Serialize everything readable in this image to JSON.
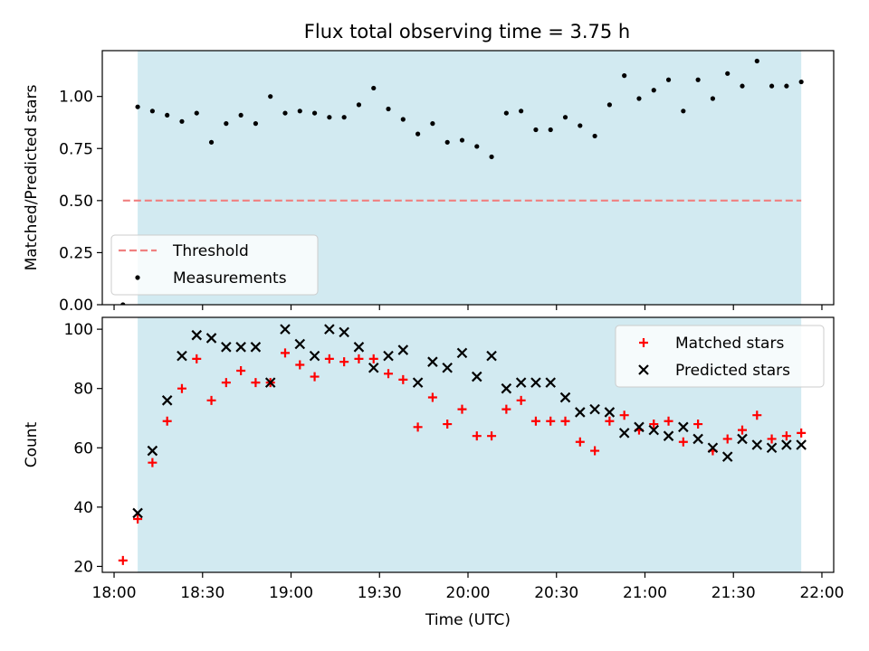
{
  "title": "Flux total observing time = 3.75 h",
  "chart_data": [
    {
      "type": "scatter",
      "ylabel": "Matched/Predicted stars",
      "ylim": [
        0,
        1.22
      ],
      "xlim": [
        "17:56",
        "22:04"
      ],
      "yticks": [
        0.0,
        0.25,
        0.5,
        0.75,
        1.0
      ],
      "ytick_labels": [
        "0.00",
        "0.25",
        "0.50",
        "0.75",
        "1.00"
      ],
      "shaded_interval": [
        "18:08",
        "21:53"
      ],
      "shade_color": "#add8e6",
      "threshold": {
        "name": "Threshold",
        "value": 0.5,
        "x_start": "18:03",
        "x_end": "21:53",
        "color": "#f08080"
      },
      "legend_position": "lower-left",
      "series": [
        {
          "name": "Measurements",
          "marker": "dot",
          "color": "#000000",
          "points": [
            [
              "18:03",
              0.0
            ],
            [
              "18:08",
              0.95
            ],
            [
              "18:13",
              0.93
            ],
            [
              "18:18",
              0.91
            ],
            [
              "18:23",
              0.88
            ],
            [
              "18:28",
              0.92
            ],
            [
              "18:33",
              0.78
            ],
            [
              "18:38",
              0.87
            ],
            [
              "18:43",
              0.91
            ],
            [
              "18:48",
              0.87
            ],
            [
              "18:53",
              1.0
            ],
            [
              "18:58",
              0.92
            ],
            [
              "19:03",
              0.93
            ],
            [
              "19:08",
              0.92
            ],
            [
              "19:13",
              0.9
            ],
            [
              "19:18",
              0.9
            ],
            [
              "19:23",
              0.96
            ],
            [
              "19:28",
              1.04
            ],
            [
              "19:33",
              0.94
            ],
            [
              "19:38",
              0.89
            ],
            [
              "19:43",
              0.82
            ],
            [
              "19:48",
              0.87
            ],
            [
              "19:53",
              0.78
            ],
            [
              "19:58",
              0.79
            ],
            [
              "20:03",
              0.76
            ],
            [
              "20:08",
              0.71
            ],
            [
              "20:13",
              0.92
            ],
            [
              "20:18",
              0.93
            ],
            [
              "20:23",
              0.84
            ],
            [
              "20:28",
              0.84
            ],
            [
              "20:33",
              0.9
            ],
            [
              "20:38",
              0.86
            ],
            [
              "20:43",
              0.81
            ],
            [
              "20:48",
              0.96
            ],
            [
              "20:53",
              1.1
            ],
            [
              "20:58",
              0.99
            ],
            [
              "21:03",
              1.03
            ],
            [
              "21:08",
              1.08
            ],
            [
              "21:13",
              0.93
            ],
            [
              "21:18",
              1.08
            ],
            [
              "21:23",
              0.99
            ],
            [
              "21:28",
              1.11
            ],
            [
              "21:33",
              1.05
            ],
            [
              "21:38",
              1.17
            ],
            [
              "21:43",
              1.05
            ],
            [
              "21:48",
              1.05
            ],
            [
              "21:53",
              1.07
            ]
          ]
        }
      ]
    },
    {
      "type": "scatter",
      "xlabel": "Time (UTC)",
      "ylabel": "Count",
      "ylim": [
        18,
        104
      ],
      "xlim": [
        "17:56",
        "22:04"
      ],
      "yticks": [
        20,
        40,
        60,
        80,
        100
      ],
      "xticks": [
        "18:00",
        "18:30",
        "19:00",
        "19:30",
        "20:00",
        "20:30",
        "21:00",
        "21:30",
        "22:00"
      ],
      "shaded_interval": [
        "18:08",
        "21:53"
      ],
      "shade_color": "#add8e6",
      "legend_position": "upper-right",
      "series": [
        {
          "name": "Matched stars",
          "marker": "plus",
          "color": "#ff0000",
          "points": [
            [
              "18:03",
              22
            ],
            [
              "18:08",
              36
            ],
            [
              "18:13",
              55
            ],
            [
              "18:18",
              69
            ],
            [
              "18:23",
              80
            ],
            [
              "18:28",
              90
            ],
            [
              "18:33",
              76
            ],
            [
              "18:38",
              82
            ],
            [
              "18:43",
              86
            ],
            [
              "18:48",
              82
            ],
            [
              "18:53",
              82
            ],
            [
              "18:58",
              92
            ],
            [
              "19:03",
              88
            ],
            [
              "19:08",
              84
            ],
            [
              "19:13",
              90
            ],
            [
              "19:18",
              89
            ],
            [
              "19:23",
              90
            ],
            [
              "19:28",
              90
            ],
            [
              "19:33",
              85
            ],
            [
              "19:38",
              83
            ],
            [
              "19:43",
              67
            ],
            [
              "19:48",
              77
            ],
            [
              "19:53",
              68
            ],
            [
              "19:58",
              73
            ],
            [
              "20:03",
              64
            ],
            [
              "20:08",
              64
            ],
            [
              "20:13",
              73
            ],
            [
              "20:18",
              76
            ],
            [
              "20:23",
              69
            ],
            [
              "20:28",
              69
            ],
            [
              "20:33",
              69
            ],
            [
              "20:38",
              62
            ],
            [
              "20:43",
              59
            ],
            [
              "20:48",
              69
            ],
            [
              "20:53",
              71
            ],
            [
              "20:58",
              66
            ],
            [
              "21:03",
              68
            ],
            [
              "21:08",
              69
            ],
            [
              "21:13",
              62
            ],
            [
              "21:18",
              68
            ],
            [
              "21:23",
              59
            ],
            [
              "21:28",
              63
            ],
            [
              "21:33",
              66
            ],
            [
              "21:38",
              71
            ],
            [
              "21:43",
              63
            ],
            [
              "21:48",
              64
            ],
            [
              "21:53",
              65
            ]
          ]
        },
        {
          "name": "Predicted stars",
          "marker": "cross",
          "color": "#000000",
          "points": [
            [
              "18:08",
              38
            ],
            [
              "18:13",
              59
            ],
            [
              "18:18",
              76
            ],
            [
              "18:23",
              91
            ],
            [
              "18:28",
              98
            ],
            [
              "18:33",
              97
            ],
            [
              "18:38",
              94
            ],
            [
              "18:43",
              94
            ],
            [
              "18:48",
              94
            ],
            [
              "18:53",
              82
            ],
            [
              "18:58",
              100
            ],
            [
              "19:03",
              95
            ],
            [
              "19:08",
              91
            ],
            [
              "19:13",
              100
            ],
            [
              "19:18",
              99
            ],
            [
              "19:23",
              94
            ],
            [
              "19:28",
              87
            ],
            [
              "19:33",
              91
            ],
            [
              "19:38",
              93
            ],
            [
              "19:43",
              82
            ],
            [
              "19:48",
              89
            ],
            [
              "19:53",
              87
            ],
            [
              "19:58",
              92
            ],
            [
              "20:03",
              84
            ],
            [
              "20:08",
              91
            ],
            [
              "20:13",
              80
            ],
            [
              "20:18",
              82
            ],
            [
              "20:23",
              82
            ],
            [
              "20:28",
              82
            ],
            [
              "20:33",
              77
            ],
            [
              "20:38",
              72
            ],
            [
              "20:43",
              73
            ],
            [
              "20:48",
              72
            ],
            [
              "20:53",
              65
            ],
            [
              "20:58",
              67
            ],
            [
              "21:03",
              66
            ],
            [
              "21:08",
              64
            ],
            [
              "21:13",
              67
            ],
            [
              "21:18",
              63
            ],
            [
              "21:23",
              60
            ],
            [
              "21:28",
              57
            ],
            [
              "21:33",
              63
            ],
            [
              "21:38",
              61
            ],
            [
              "21:43",
              60
            ],
            [
              "21:48",
              61
            ],
            [
              "21:53",
              61
            ]
          ]
        }
      ]
    }
  ]
}
